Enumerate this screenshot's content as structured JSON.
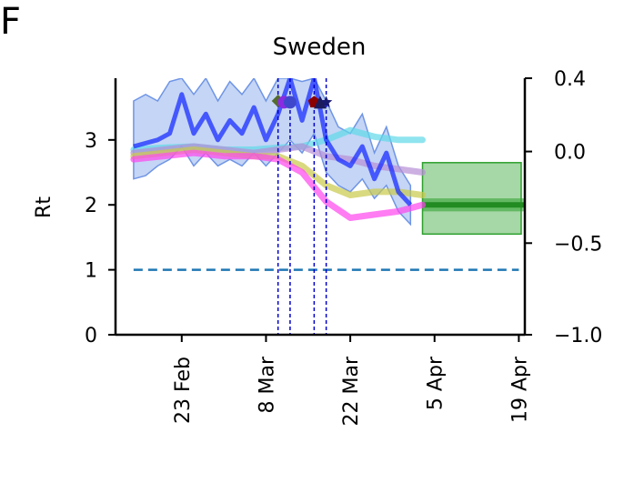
{
  "chart_data": {
    "type": "line",
    "panel_label": "F",
    "title": "Sweden",
    "ylabel": "Rt",
    "ylim": [
      0,
      3.95
    ],
    "yticks": [
      0,
      1,
      2,
      3
    ],
    "ylim_right": [
      -1.0,
      0.4
    ],
    "yticks_right": [
      "0.4",
      "0.0",
      "−0.5",
      "−1.0"
    ],
    "yticks_right_values": [
      0.4,
      0.0,
      -0.5,
      -1.0
    ],
    "xlim": [
      "2020-02-12",
      "2020-04-20"
    ],
    "xticks": [
      {
        "label": "23 Feb",
        "date": "2020-02-23"
      },
      {
        "label": "8 Mar",
        "date": "2020-03-08"
      },
      {
        "label": "22 Mar",
        "date": "2020-03-22"
      },
      {
        "label": "5 Apr",
        "date": "2020-04-05"
      },
      {
        "label": "19 Apr",
        "date": "2020-04-19"
      }
    ],
    "reference_line": {
      "y": 1,
      "x_start": "2020-02-15",
      "x_end": "2020-04-19",
      "color": "#1f77b4",
      "style": "dashed"
    },
    "intervention_lines": [
      "2020-03-10",
      "2020-03-12",
      "2020-03-16",
      "2020-03-18"
    ],
    "markers": [
      {
        "date": "2020-03-10",
        "y": 3.6,
        "shape": "diamond",
        "color": "#556b2f"
      },
      {
        "date": "2020-03-11",
        "y": 3.58,
        "shape": "circle",
        "color": "#8a2be2"
      },
      {
        "date": "2020-03-12",
        "y": 3.58,
        "shape": "circle",
        "color": "#3f48cc"
      },
      {
        "date": "2020-03-16",
        "y": 3.58,
        "shape": "pentagon",
        "color": "#8b0000"
      },
      {
        "date": "2020-03-17",
        "y": 3.58,
        "shape": "triangle",
        "color": "#1c1c5c"
      },
      {
        "date": "2020-03-18",
        "y": 3.58,
        "shape": "star",
        "color": "#191970"
      }
    ],
    "series": [
      {
        "color": "#1a2eff",
        "band_color": "#6f95e6",
        "x": [
          "2020-02-15",
          "2020-02-17",
          "2020-02-19",
          "2020-02-21",
          "2020-02-23",
          "2020-02-25",
          "2020-02-27",
          "2020-02-29",
          "2020-03-02",
          "2020-03-04",
          "2020-03-06",
          "2020-03-08",
          "2020-03-10",
          "2020-03-12",
          "2020-03-14",
          "2020-03-16",
          "2020-03-18",
          "2020-03-20",
          "2020-03-22",
          "2020-03-24",
          "2020-03-26",
          "2020-03-28",
          "2020-03-30",
          "2020-04-01"
        ],
        "values": [
          2.9,
          2.95,
          3.0,
          3.1,
          3.7,
          3.1,
          3.4,
          3.0,
          3.3,
          3.1,
          3.5,
          3.0,
          3.4,
          3.95,
          3.3,
          3.95,
          3.0,
          2.7,
          2.6,
          2.9,
          2.4,
          2.8,
          2.2,
          2.0
        ],
        "lower": [
          2.4,
          2.45,
          2.6,
          2.7,
          2.9,
          2.6,
          2.8,
          2.6,
          2.7,
          2.6,
          2.8,
          2.6,
          2.8,
          3.0,
          2.8,
          3.1,
          2.5,
          2.3,
          2.2,
          2.4,
          2.1,
          2.3,
          1.9,
          1.7
        ],
        "upper": [
          3.6,
          3.7,
          3.6,
          3.9,
          3.95,
          3.7,
          3.95,
          3.6,
          3.9,
          3.7,
          3.95,
          3.6,
          3.95,
          3.95,
          3.9,
          3.95,
          3.6,
          3.2,
          3.1,
          3.4,
          2.8,
          3.2,
          2.6,
          2.3
        ]
      },
      {
        "color": "#5fd9e8",
        "x": [
          "2020-02-15",
          "2020-02-20",
          "2020-02-25",
          "2020-03-01",
          "2020-03-06",
          "2020-03-10",
          "2020-03-14",
          "2020-03-18",
          "2020-03-22",
          "2020-03-26",
          "2020-03-30",
          "2020-04-03"
        ],
        "values": [
          2.85,
          2.88,
          2.9,
          2.85,
          2.85,
          2.88,
          2.9,
          3.0,
          3.15,
          3.05,
          3.0,
          3.0
        ]
      },
      {
        "color": "#b78fd6",
        "x": [
          "2020-02-15",
          "2020-02-20",
          "2020-02-25",
          "2020-03-01",
          "2020-03-06",
          "2020-03-10",
          "2020-03-14",
          "2020-03-18",
          "2020-03-22",
          "2020-03-26",
          "2020-03-30",
          "2020-04-03"
        ],
        "values": [
          2.8,
          2.85,
          2.9,
          2.85,
          2.8,
          2.85,
          2.9,
          2.75,
          2.7,
          2.6,
          2.55,
          2.5
        ]
      },
      {
        "color": "#c9c94a",
        "x": [
          "2020-02-15",
          "2020-02-20",
          "2020-02-25",
          "2020-03-01",
          "2020-03-06",
          "2020-03-10",
          "2020-03-14",
          "2020-03-18",
          "2020-03-22",
          "2020-03-26",
          "2020-03-30",
          "2020-04-03"
        ],
        "values": [
          2.75,
          2.8,
          2.85,
          2.8,
          2.75,
          2.75,
          2.6,
          2.3,
          2.15,
          2.2,
          2.2,
          2.15
        ]
      },
      {
        "color": "#ff44ee",
        "x": [
          "2020-02-15",
          "2020-02-20",
          "2020-02-25",
          "2020-03-01",
          "2020-03-06",
          "2020-03-10",
          "2020-03-14",
          "2020-03-18",
          "2020-03-22",
          "2020-03-26",
          "2020-03-30",
          "2020-04-03"
        ],
        "values": [
          2.7,
          2.75,
          2.8,
          2.75,
          2.75,
          2.7,
          2.5,
          2.05,
          1.8,
          1.85,
          1.9,
          2.0
        ]
      }
    ],
    "forecast": {
      "x_start": "2020-04-03",
      "x_end": "2020-04-20",
      "value": 2.0,
      "inner": [
        1.9,
        2.1
      ],
      "lower": 1.55,
      "upper": 2.65,
      "color": "#2ca02c"
    },
    "colors": {
      "axis": "#000000",
      "vlines": "#0000cc",
      "ref": "#1f77b4"
    }
  }
}
